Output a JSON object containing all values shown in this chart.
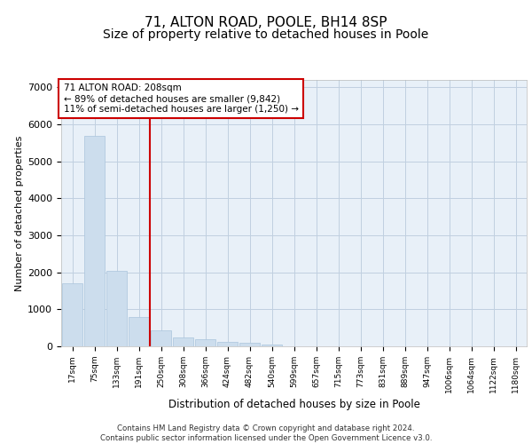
{
  "title1": "71, ALTON ROAD, POOLE, BH14 8SP",
  "title2": "Size of property relative to detached houses in Poole",
  "xlabel": "Distribution of detached houses by size in Poole",
  "ylabel": "Number of detached properties",
  "categories": [
    "17sqm",
    "75sqm",
    "133sqm",
    "191sqm",
    "250sqm",
    "308sqm",
    "366sqm",
    "424sqm",
    "482sqm",
    "540sqm",
    "599sqm",
    "657sqm",
    "715sqm",
    "773sqm",
    "831sqm",
    "889sqm",
    "947sqm",
    "1006sqm",
    "1064sqm",
    "1122sqm",
    "1180sqm"
  ],
  "values": [
    1700,
    5700,
    2050,
    800,
    430,
    250,
    190,
    130,
    90,
    55,
    0,
    0,
    0,
    0,
    0,
    0,
    0,
    0,
    0,
    0,
    0
  ],
  "bar_color": "#ccdded",
  "bar_edge_color": "#aac4dc",
  "vline_position": 3.5,
  "vline_color": "#cc0000",
  "annotation_line1": "71 ALTON ROAD: 208sqm",
  "annotation_line2": "← 89% of detached houses are smaller (9,842)",
  "annotation_line3": "11% of semi-detached houses are larger (1,250) →",
  "annotation_box_color": "#cc0000",
  "grid_color": "#c0d0e0",
  "bg_color": "#e8f0f8",
  "footer1": "Contains HM Land Registry data © Crown copyright and database right 2024.",
  "footer2": "Contains public sector information licensed under the Open Government Licence v3.0.",
  "title1_fontsize": 11,
  "title2_fontsize": 10,
  "ylim": [
    0,
    7200
  ],
  "yticks": [
    0,
    1000,
    2000,
    3000,
    4000,
    5000,
    6000,
    7000
  ]
}
